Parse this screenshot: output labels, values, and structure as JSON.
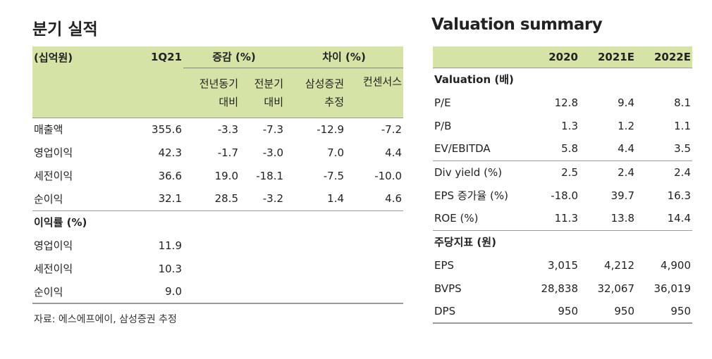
{
  "left": {
    "title": "분기 실적",
    "header": {
      "unit": "(십억원)",
      "q": "1Q21",
      "change_group": "증감 (%)",
      "diff_group": "차이 (%)",
      "yoy_l1": "전년동기",
      "yoy_l2": "대비",
      "qoq_l1": "전분기",
      "qoq_l2": "대비",
      "est_l1": "삼성증권",
      "est_l2": "추정",
      "consensus": "컨센서스"
    },
    "rows": [
      {
        "label": "매출액",
        "q": "355.6",
        "yoy": "-3.3",
        "qoq": "-7.3",
        "est": "-12.9",
        "cons": "-7.2"
      },
      {
        "label": "영업이익",
        "q": "42.3",
        "yoy": "-1.7",
        "qoq": "-3.0",
        "est": "7.0",
        "cons": "4.4"
      },
      {
        "label": "세전이익",
        "q": "36.6",
        "yoy": "19.0",
        "qoq": "-18.1",
        "est": "-7.5",
        "cons": "-10.0"
      },
      {
        "label": "순이익",
        "q": "32.1",
        "yoy": "28.5",
        "qoq": "-3.2",
        "est": "1.4",
        "cons": "4.6"
      }
    ],
    "margin_section": "이익률 (%)",
    "margin_rows": [
      {
        "label": "영업이익",
        "q": "11.9"
      },
      {
        "label": "세전이익",
        "q": "10.3"
      },
      {
        "label": "순이익",
        "q": "9.0"
      }
    ],
    "source": "자료: 에스에프에이, 삼성증권 추정"
  },
  "right": {
    "title": "Valuation summary",
    "years": [
      "2020",
      "2021E",
      "2022E"
    ],
    "valuation_section": "Valuation (배)",
    "valuation_rows": [
      {
        "label": "P/E",
        "v": [
          "12.8",
          "9.4",
          "8.1"
        ]
      },
      {
        "label": "P/B",
        "v": [
          "1.3",
          "1.2",
          "1.1"
        ]
      },
      {
        "label": "EV/EBITDA",
        "v": [
          "5.8",
          "4.4",
          "3.5"
        ]
      }
    ],
    "ratio_rows": [
      {
        "label": "Div yield (%)",
        "v": [
          "2.5",
          "2.4",
          "2.4"
        ]
      },
      {
        "label": "EPS 증가율 (%)",
        "v": [
          "-18.0",
          "39.7",
          "16.3"
        ]
      },
      {
        "label": "ROE (%)",
        "v": [
          "11.3",
          "13.8",
          "14.4"
        ]
      }
    ],
    "pershare_section": "주당지표 (원)",
    "pershare_rows": [
      {
        "label": "EPS",
        "v": [
          "3,015",
          "4,212",
          "4,900"
        ]
      },
      {
        "label": "BVPS",
        "v": [
          "28,838",
          "32,067",
          "36,019"
        ]
      },
      {
        "label": "DPS",
        "v": [
          "950",
          "950",
          "950"
        ]
      }
    ]
  }
}
